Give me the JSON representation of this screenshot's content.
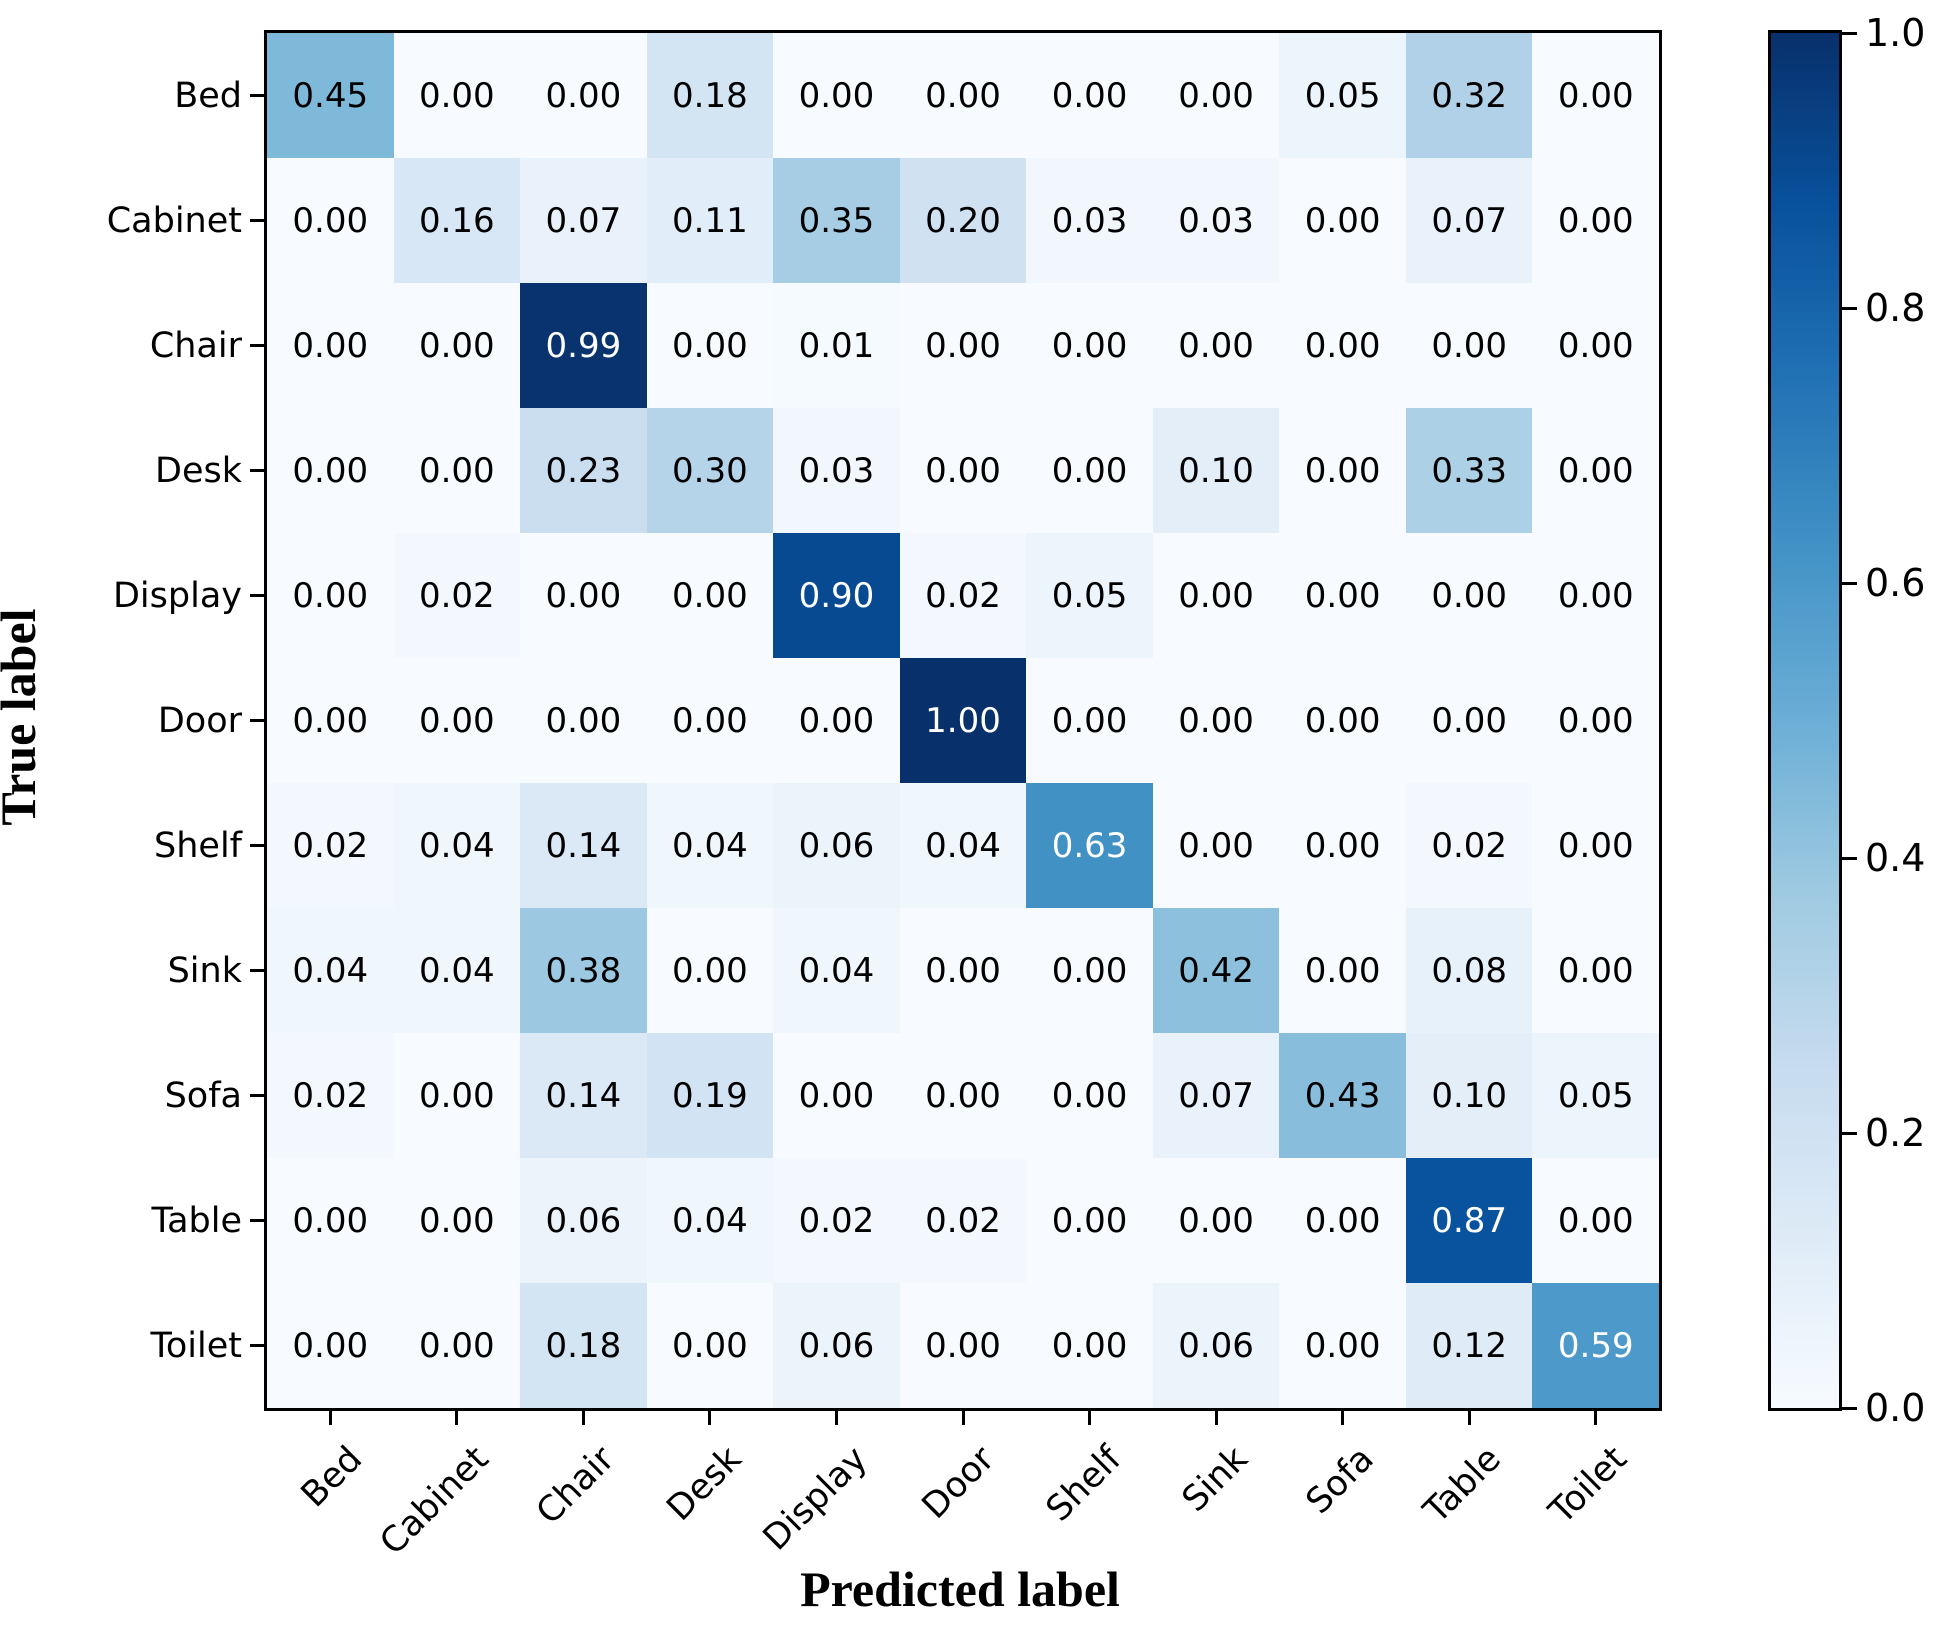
{
  "chart_data": {
    "type": "heatmap",
    "title": "",
    "xlabel": "Predicted label",
    "ylabel": "True label",
    "x_categories": [
      "Bed",
      "Cabinet",
      "Chair",
      "Desk",
      "Display",
      "Door",
      "Shelf",
      "Sink",
      "Sofa",
      "Table",
      "Toilet"
    ],
    "y_categories": [
      "Bed",
      "Cabinet",
      "Chair",
      "Desk",
      "Display",
      "Door",
      "Shelf",
      "Sink",
      "Sofa",
      "Table",
      "Toilet"
    ],
    "matrix": [
      [
        0.45,
        0.0,
        0.0,
        0.18,
        0.0,
        0.0,
        0.0,
        0.0,
        0.05,
        0.32,
        0.0
      ],
      [
        0.0,
        0.16,
        0.07,
        0.11,
        0.35,
        0.2,
        0.03,
        0.03,
        0.0,
        0.07,
        0.0
      ],
      [
        0.0,
        0.0,
        0.99,
        0.0,
        0.01,
        0.0,
        0.0,
        0.0,
        0.0,
        0.0,
        0.0
      ],
      [
        0.0,
        0.0,
        0.23,
        0.3,
        0.03,
        0.0,
        0.0,
        0.1,
        0.0,
        0.33,
        0.0
      ],
      [
        0.0,
        0.02,
        0.0,
        0.0,
        0.9,
        0.02,
        0.05,
        0.0,
        0.0,
        0.0,
        0.0
      ],
      [
        0.0,
        0.0,
        0.0,
        0.0,
        0.0,
        1.0,
        0.0,
        0.0,
        0.0,
        0.0,
        0.0
      ],
      [
        0.02,
        0.04,
        0.14,
        0.04,
        0.06,
        0.04,
        0.63,
        0.0,
        0.0,
        0.02,
        0.0
      ],
      [
        0.04,
        0.04,
        0.38,
        0.0,
        0.04,
        0.0,
        0.0,
        0.42,
        0.0,
        0.08,
        0.0
      ],
      [
        0.02,
        0.0,
        0.14,
        0.19,
        0.0,
        0.0,
        0.0,
        0.07,
        0.43,
        0.1,
        0.05
      ],
      [
        0.0,
        0.0,
        0.06,
        0.04,
        0.02,
        0.02,
        0.0,
        0.0,
        0.0,
        0.87,
        0.0
      ],
      [
        0.0,
        0.0,
        0.18,
        0.0,
        0.06,
        0.0,
        0.0,
        0.06,
        0.0,
        0.12,
        0.59
      ]
    ],
    "value_decimals": 2,
    "vmin": 0.0,
    "vmax": 1.0,
    "colormap": "Blues",
    "colormap_stops": [
      "#f7fbff",
      "#deebf7",
      "#c6dbef",
      "#9ecae1",
      "#6baed6",
      "#4292c6",
      "#2171b5",
      "#08519c",
      "#08306b"
    ],
    "colorbar_ticks": [
      "1.0",
      "0.8",
      "0.6",
      "0.4",
      "0.2",
      "0.0"
    ],
    "cell_text_color_light": "#000000",
    "cell_text_color_dark": "#ffffff",
    "white_text_threshold": 0.5,
    "grid": false,
    "legend_position": "colorbar-right"
  }
}
